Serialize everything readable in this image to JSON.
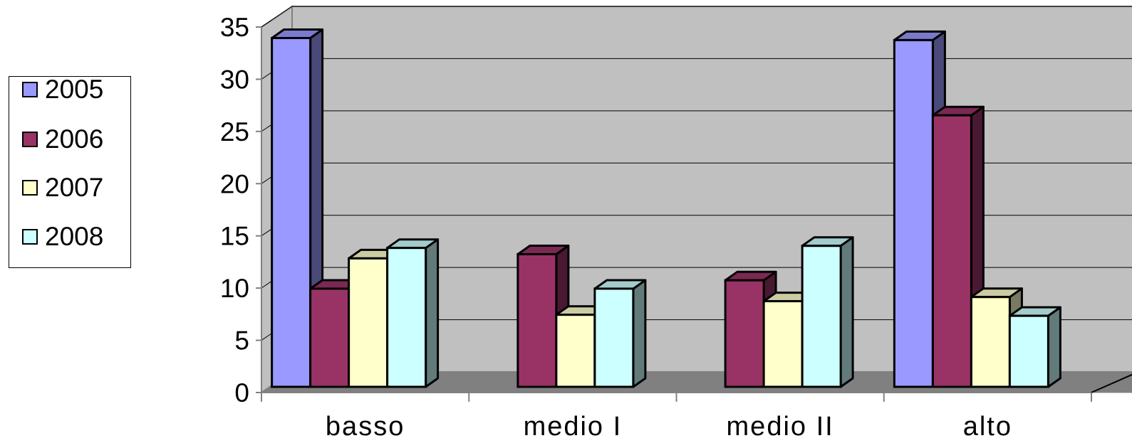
{
  "chart_data": {
    "type": "bar",
    "categories": [
      "basso",
      "medio I",
      "medio II",
      "alto"
    ],
    "series": [
      {
        "name": "2005",
        "color": "#9999FF",
        "values": [
          33.4,
          0,
          0,
          33.2
        ]
      },
      {
        "name": "2006",
        "color": "#993366",
        "values": [
          9.4,
          12.7,
          10.2,
          26.0
        ]
      },
      {
        "name": "2007",
        "color": "#FFFFCC",
        "values": [
          12.3,
          6.9,
          8.2,
          8.6
        ]
      },
      {
        "name": "2008",
        "color": "#CCFFFF",
        "values": [
          13.3,
          9.4,
          13.5,
          6.8
        ]
      }
    ],
    "yticks": [
      0,
      5,
      10,
      15,
      20,
      25,
      30,
      35
    ],
    "ylim": [
      0,
      35
    ],
    "grid": true,
    "legend_position": "left",
    "title": "",
    "xlabel": "",
    "ylabel": ""
  }
}
